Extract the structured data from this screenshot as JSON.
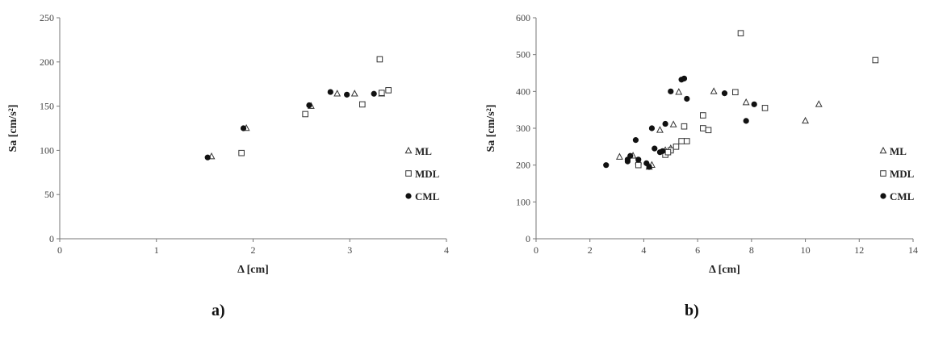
{
  "panels": [
    {
      "label": "a)",
      "chart_data": {
        "type": "scatter",
        "xlabel": "Δ [cm]",
        "ylabel": "Sa [cm/s²]",
        "xlim": [
          0,
          4
        ],
        "ylim": [
          0,
          250
        ],
        "xticks": [
          0,
          1,
          2,
          3,
          4
        ],
        "yticks": [
          0,
          50,
          100,
          150,
          200,
          250
        ],
        "grid": false,
        "legend_position": "right",
        "series": [
          {
            "name": "ML",
            "marker": "triangle-open",
            "x": [
              1.57,
              1.93,
              2.6,
              2.87,
              3.05,
              3.33
            ],
            "y": [
              93,
              125,
              150,
              164,
              164,
              164
            ]
          },
          {
            "name": "MDL",
            "marker": "square-open",
            "x": [
              1.88,
              2.54,
              3.13,
              3.31,
              3.33,
              3.4
            ],
            "y": [
              97,
              141,
              152,
              203,
              165,
              168
            ]
          },
          {
            "name": "CML",
            "marker": "circle-filled",
            "x": [
              1.53,
              1.9,
              2.58,
              2.8,
              2.97,
              3.25
            ],
            "y": [
              92,
              125,
              151,
              166,
              163,
              164
            ]
          }
        ]
      }
    },
    {
      "label": "b)",
      "chart_data": {
        "type": "scatter",
        "xlabel": "Δ [cm]",
        "ylabel": "Sa [cm/s²]",
        "xlim": [
          0,
          14
        ],
        "ylim": [
          0,
          600
        ],
        "xticks": [
          0,
          2,
          4,
          6,
          8,
          10,
          12,
          14
        ],
        "yticks": [
          0,
          100,
          200,
          300,
          400,
          500,
          600
        ],
        "grid": false,
        "legend_position": "right",
        "series": [
          {
            "name": "ML",
            "marker": "triangle-open",
            "x": [
              3.1,
              3.6,
              4.3,
              4.6,
              4.8,
              5.1,
              5.3,
              6.6,
              7.8,
              10.0,
              10.5,
              3.8,
              4.2,
              5.0
            ],
            "y": [
              222,
              225,
              200,
              295,
              240,
              310,
              398,
              400,
              370,
              320,
              365,
              210,
              195,
              245
            ]
          },
          {
            "name": "MDL",
            "marker": "square-open",
            "x": [
              3.8,
              4.8,
              5.0,
              5.2,
              5.4,
              5.5,
              5.6,
              6.2,
              6.4,
              6.2,
              7.4,
              7.6,
              8.5,
              12.6,
              4.9
            ],
            "y": [
              200,
              228,
              240,
              250,
              265,
              305,
              265,
              300,
              295,
              335,
              398,
              558,
              355,
              485,
              235
            ]
          },
          {
            "name": "CML",
            "marker": "circle-filled",
            "x": [
              2.6,
              3.4,
              3.5,
              3.7,
              3.8,
              4.1,
              4.2,
              4.3,
              4.4,
              4.6,
              4.7,
              4.8,
              5.0,
              5.4,
              5.5,
              5.6,
              7.0,
              7.8,
              8.1,
              3.4
            ],
            "y": [
              200,
              215,
              225,
              268,
              215,
              205,
              195,
              300,
              245,
              235,
              238,
              312,
              400,
              432,
              435,
              380,
              395,
              320,
              365,
              210
            ]
          }
        ]
      }
    }
  ]
}
